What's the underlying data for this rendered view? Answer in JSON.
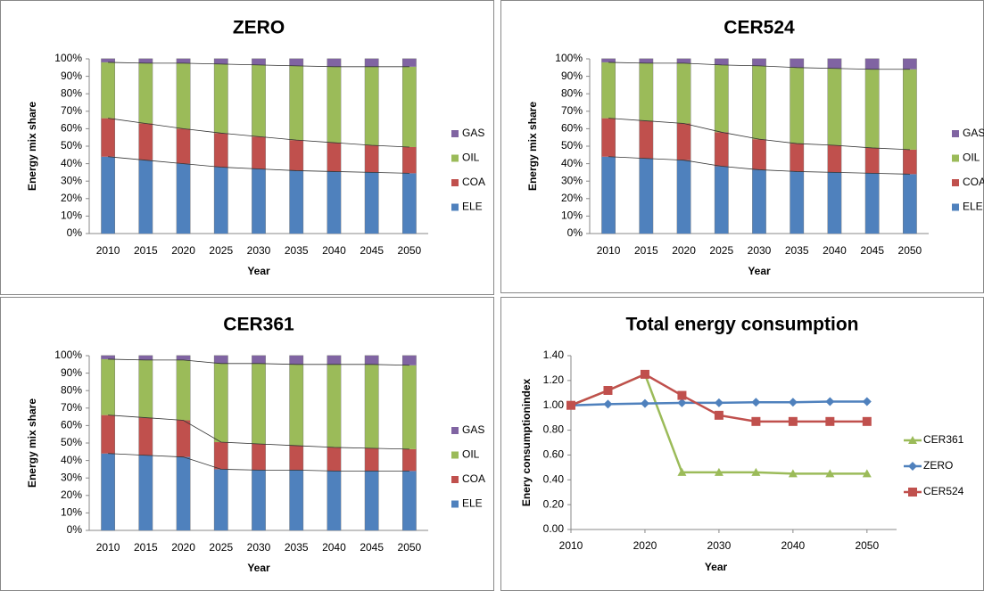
{
  "chart_data": [
    {
      "type": "bar",
      "stacked": true,
      "title": "ZERO",
      "xlabel": "Year",
      "ylabel": "Energy mix share",
      "categories": [
        "2010",
        "2015",
        "2020",
        "2025",
        "2030",
        "2035",
        "2040",
        "2045",
        "2050"
      ],
      "series": [
        {
          "name": "ELE",
          "color": "#4f81bd",
          "values": [
            44,
            42,
            40,
            38,
            37,
            36,
            35.5,
            35,
            34.5
          ]
        },
        {
          "name": "COA",
          "color": "#c0504d",
          "values": [
            22,
            21,
            20,
            19.5,
            18.5,
            17.5,
            16.5,
            15.5,
            15
          ]
        },
        {
          "name": "OIL",
          "color": "#9bbb59",
          "values": [
            32,
            34.5,
            37.5,
            39.5,
            41,
            42.5,
            43.5,
            45,
            46
          ]
        },
        {
          "name": "GAS",
          "color": "#8064a2",
          "values": [
            2,
            2.5,
            2.5,
            3,
            3.5,
            4,
            4.5,
            4.5,
            4.5
          ]
        }
      ],
      "ylim": [
        0,
        100
      ],
      "yticks": [
        {
          "value": 0,
          "label": "0%"
        },
        {
          "value": 10,
          "label": "10%"
        },
        {
          "value": 20,
          "label": "20%"
        },
        {
          "value": 30,
          "label": "30%"
        },
        {
          "value": 40,
          "label": "40%"
        },
        {
          "value": 50,
          "label": "50%"
        },
        {
          "value": 60,
          "label": "60%"
        },
        {
          "value": 70,
          "label": "70%"
        },
        {
          "value": 80,
          "label": "80%"
        },
        {
          "value": 90,
          "label": "90%"
        },
        {
          "value": 100,
          "label": "100%"
        }
      ],
      "legend": "right"
    },
    {
      "type": "bar",
      "stacked": true,
      "title": "CER524",
      "xlabel": "Year",
      "ylabel": "Energy mix share",
      "categories": [
        "2010",
        "2015",
        "2020",
        "2025",
        "2030",
        "2035",
        "2040",
        "2045",
        "2050"
      ],
      "series": [
        {
          "name": "ELE",
          "color": "#4f81bd",
          "values": [
            44,
            43,
            42,
            38.5,
            36.5,
            35.5,
            35,
            34.5,
            34
          ]
        },
        {
          "name": "COA",
          "color": "#c0504d",
          "values": [
            22,
            21.5,
            21,
            19.5,
            17.5,
            16,
            15.5,
            14.5,
            14
          ]
        },
        {
          "name": "OIL",
          "color": "#9bbb59",
          "values": [
            32,
            33,
            34.5,
            38.5,
            42,
            43.5,
            44,
            45,
            46
          ]
        },
        {
          "name": "GAS",
          "color": "#8064a2",
          "values": [
            2,
            2.5,
            2.5,
            3.5,
            4,
            5,
            5.5,
            6,
            6
          ]
        }
      ],
      "ylim": [
        0,
        100
      ],
      "yticks": [
        {
          "value": 0,
          "label": "0%"
        },
        {
          "value": 10,
          "label": "10%"
        },
        {
          "value": 20,
          "label": "20%"
        },
        {
          "value": 30,
          "label": "30%"
        },
        {
          "value": 40,
          "label": "40%"
        },
        {
          "value": 50,
          "label": "50%"
        },
        {
          "value": 60,
          "label": "60%"
        },
        {
          "value": 70,
          "label": "70%"
        },
        {
          "value": 80,
          "label": "80%"
        },
        {
          "value": 90,
          "label": "90%"
        },
        {
          "value": 100,
          "label": "100%"
        }
      ],
      "legend": "right"
    },
    {
      "type": "bar",
      "stacked": true,
      "title": "CER361",
      "xlabel": "Year",
      "ylabel": "Energy mix share",
      "categories": [
        "2010",
        "2015",
        "2020",
        "2025",
        "2030",
        "2035",
        "2040",
        "2045",
        "2050"
      ],
      "series": [
        {
          "name": "ELE",
          "color": "#4f81bd",
          "values": [
            44,
            43,
            42,
            35,
            34.5,
            34.5,
            34,
            34,
            34
          ]
        },
        {
          "name": "COA",
          "color": "#c0504d",
          "values": [
            22,
            21.5,
            21,
            15.5,
            15,
            14,
            13.5,
            13,
            12.5
          ]
        },
        {
          "name": "OIL",
          "color": "#9bbb59",
          "values": [
            32,
            33,
            34.5,
            45,
            46,
            46.5,
            47.5,
            48,
            48
          ]
        },
        {
          "name": "GAS",
          "color": "#8064a2",
          "values": [
            2,
            2.5,
            2.5,
            4.5,
            4.5,
            5,
            5,
            5,
            5.5
          ]
        }
      ],
      "ylim": [
        0,
        100
      ],
      "yticks": [
        {
          "value": 0,
          "label": "0%"
        },
        {
          "value": 10,
          "label": "10%"
        },
        {
          "value": 20,
          "label": "20%"
        },
        {
          "value": 30,
          "label": "30%"
        },
        {
          "value": 40,
          "label": "40%"
        },
        {
          "value": 50,
          "label": "50%"
        },
        {
          "value": 60,
          "label": "60%"
        },
        {
          "value": 70,
          "label": "70%"
        },
        {
          "value": 80,
          "label": "80%"
        },
        {
          "value": 90,
          "label": "90%"
        },
        {
          "value": 100,
          "label": "100%"
        }
      ],
      "legend": "right"
    },
    {
      "type": "line",
      "title": "Total energy consumption",
      "xlabel": "Year",
      "ylabel": "Enery consumptionindex",
      "x": [
        2010,
        2015,
        2020,
        2025,
        2030,
        2035,
        2040,
        2045,
        2050
      ],
      "series": [
        {
          "name": "CER361",
          "color": "#9bbb59",
          "marker": "triangle",
          "values": [
            1.0,
            1.12,
            1.25,
            0.46,
            0.46,
            0.46,
            0.45,
            0.45,
            0.45
          ]
        },
        {
          "name": "ZERO",
          "color": "#4f81bd",
          "marker": "diamond",
          "values": [
            1.0,
            1.01,
            1.015,
            1.02,
            1.02,
            1.025,
            1.025,
            1.03,
            1.03
          ]
        },
        {
          "name": "CER524",
          "color": "#c0504d",
          "marker": "square",
          "values": [
            1.0,
            1.12,
            1.25,
            1.08,
            0.92,
            0.87,
            0.87,
            0.87,
            0.87
          ]
        }
      ],
      "xlim": [
        2010,
        2054
      ],
      "xticks": [
        2010,
        2020,
        2030,
        2040,
        2050
      ],
      "ylim": [
        0,
        1.4
      ],
      "yticks": [
        {
          "value": 0,
          "label": "0.00"
        },
        {
          "value": 0.2,
          "label": "0.20"
        },
        {
          "value": 0.4,
          "label": "0.40"
        },
        {
          "value": 0.6,
          "label": "0.60"
        },
        {
          "value": 0.8,
          "label": "0.80"
        },
        {
          "value": 1.0,
          "label": "1.00"
        },
        {
          "value": 1.2,
          "label": "1.20"
        },
        {
          "value": 1.4,
          "label": "1.40"
        }
      ],
      "legend": "right"
    }
  ]
}
